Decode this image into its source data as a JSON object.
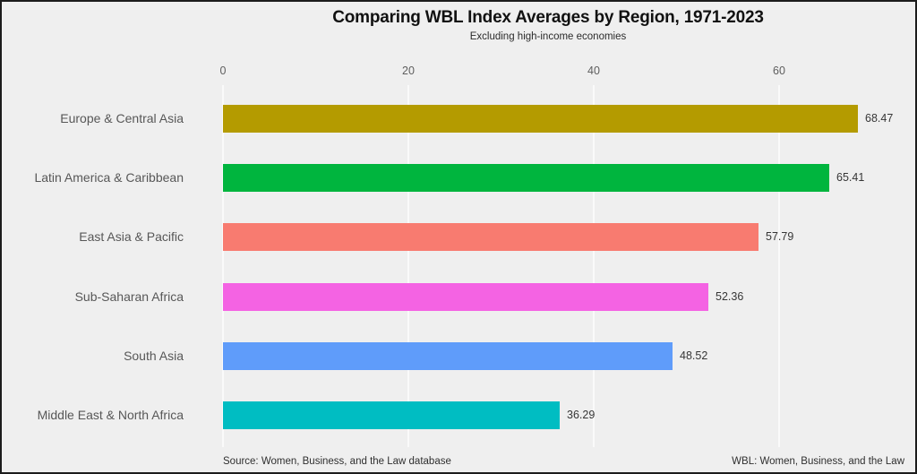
{
  "chart_data": {
    "type": "bar",
    "orientation": "horizontal",
    "title": "Comparing WBL Index Averages by Region, 1971-2023",
    "subtitle": "Excluding high-income economies",
    "categories": [
      "Europe & Central Asia",
      "Latin America & Caribbean",
      "East Asia & Pacific",
      "Sub-Saharan Africa",
      "South Asia",
      "Middle East & North Africa"
    ],
    "values": [
      68.47,
      65.41,
      57.79,
      52.36,
      48.52,
      36.29
    ],
    "value_labels": [
      "68.47",
      "65.41",
      "57.79",
      "52.36",
      "48.52",
      "36.29"
    ],
    "bar_colors": [
      "#b49b00",
      "#00b53e",
      "#f87b70",
      "#f463e3",
      "#5f9cfa",
      "#00bdc2"
    ],
    "x_ticks": [
      0,
      20,
      40,
      60
    ],
    "x_tick_labels": [
      "0",
      "20",
      "40",
      "60"
    ],
    "xlim": [
      0,
      70
    ],
    "axis_position": "top",
    "grid": "vertical",
    "legend": "none",
    "background_color": "#efefef",
    "gridline_color": "#fafafa",
    "frame_color": "#1c1c1c"
  },
  "footer": {
    "source_note": "Source: Women, Business, and the Law database",
    "abbreviation_note": "WBL: Women, Business, and the Law"
  }
}
